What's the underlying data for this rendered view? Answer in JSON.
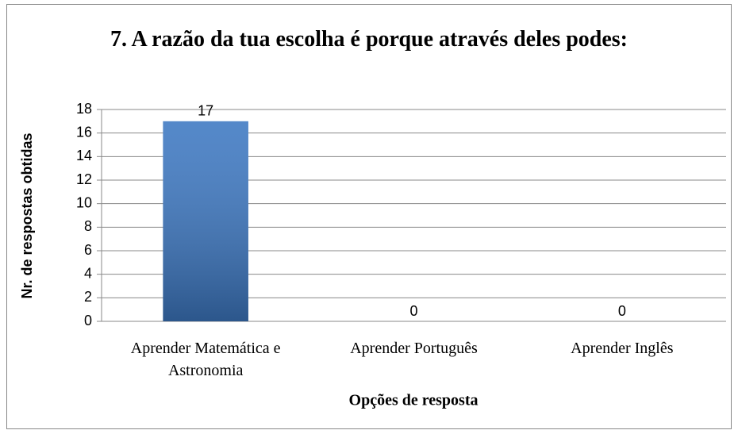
{
  "chart_data": {
    "type": "bar",
    "title": "7. A razão da tua escolha é porque através deles podes:",
    "categories": [
      "Aprender Matemática e Astronomia",
      "Aprender Português",
      "Aprender Inglês"
    ],
    "values": [
      17,
      0,
      0
    ],
    "color": "#3d78c2",
    "xlabel": "Opções de resposta",
    "ylabel": "Nr. de respostas obtidas",
    "ylim": [
      0,
      18
    ],
    "yticks": [
      0,
      2,
      4,
      6,
      8,
      10,
      12,
      14,
      16,
      18
    ],
    "grid": true
  }
}
